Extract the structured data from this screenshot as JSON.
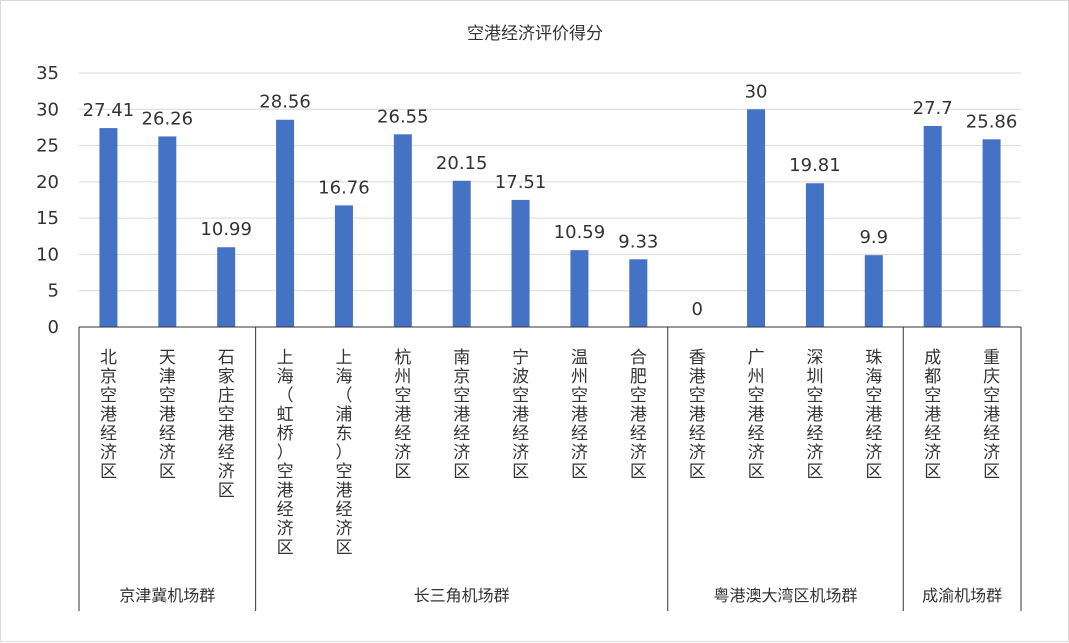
{
  "chart_data": {
    "type": "bar",
    "title": "空港经济评价得分",
    "ylim": [
      0,
      35
    ],
    "yticks": [
      0,
      5,
      10,
      15,
      20,
      25,
      30,
      35
    ],
    "grid": true,
    "bar_color": "#4472C4",
    "categories": [
      "北京空港经济区",
      "天津空港经济区",
      "石家庄空港经济区",
      "上海（虹桥）空港经济区",
      "上海（浦东）空港经济区",
      "杭州空港经济区",
      "南京空港经济区",
      "宁波空港经济区",
      "温州空港经济区",
      "合肥空港经济区",
      "香港空港经济区",
      "广州空港经济区",
      "深圳空港经济区",
      "珠海空港经济区",
      "成都空港经济区",
      "重庆空港经济区"
    ],
    "values": [
      27.41,
      26.26,
      10.99,
      28.56,
      16.76,
      26.55,
      20.15,
      17.51,
      10.59,
      9.33,
      0,
      30,
      19.81,
      9.9,
      27.7,
      25.86
    ],
    "groups": [
      {
        "name": "京津冀机场群",
        "count": 3
      },
      {
        "name": "长三角机场群",
        "count": 7
      },
      {
        "name": "粤港澳大湾区机场群",
        "count": 4
      },
      {
        "name": "成渝机场群",
        "count": 2
      }
    ]
  }
}
